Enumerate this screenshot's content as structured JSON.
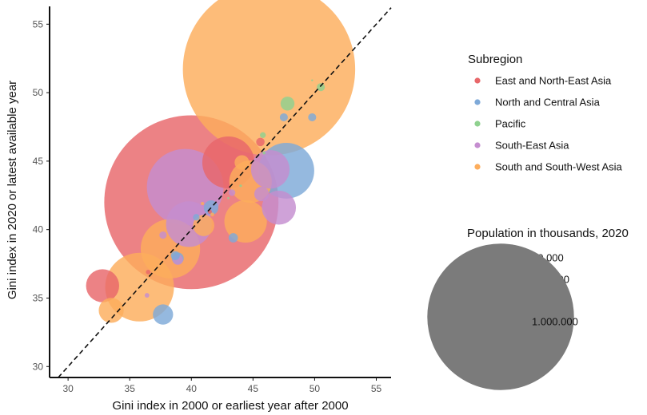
{
  "chart_data": {
    "type": "scatter",
    "xlabel": "Gini index in 2000 or earliest year after 2000",
    "ylabel": "Gini index in 2020 or latest available year",
    "xlim": [
      28.5,
      56.2
    ],
    "ylim": [
      29.2,
      56.3
    ],
    "xticks": [
      "30",
      "35",
      "40",
      "45",
      "50",
      "55"
    ],
    "yticks": [
      "30",
      "35",
      "40",
      "45",
      "50",
      "55"
    ],
    "reference_line": "y = x (dashed)",
    "grid": false,
    "colors": {
      "East and North-East Asia": "#e8676a",
      "North and Central Asia": "#7ea9d8",
      "Pacific": "#8fd18f",
      "South-East Asia": "#c58ed0",
      "South and South-West Asia": "#fdad5c"
    },
    "size_legend": {
      "title": "Population in thousands, 2020",
      "items": [
        {
          "label": "10,000",
          "value": 10000
        },
        {
          "label": "100.000",
          "value": 100000
        },
        {
          "label": "1.000.000",
          "value": 1000000
        }
      ]
    },
    "color_legend": {
      "title": "Subregion",
      "items": [
        "East and North-East Asia",
        "North and Central Asia",
        "Pacific",
        "South-East Asia",
        "South and South-West Asia"
      ]
    },
    "series": [
      {
        "name": "East and North-East Asia",
        "points": [
          {
            "x": 40.0,
            "y": 42.0,
            "pop": 1410000
          },
          {
            "x": 43.0,
            "y": 44.9,
            "pop": 126000
          },
          {
            "x": 32.8,
            "y": 35.9,
            "pop": 51000
          },
          {
            "x": 45.6,
            "y": 46.4,
            "pop": 3300
          },
          {
            "x": 36.5,
            "y": 36.9,
            "pop": 1000
          },
          {
            "x": 41.5,
            "y": 41.3,
            "pop": 800
          }
        ]
      },
      {
        "name": "North and Central Asia",
        "points": [
          {
            "x": 47.7,
            "y": 44.3,
            "pop": 145000
          },
          {
            "x": 37.7,
            "y": 33.8,
            "pop": 19000
          },
          {
            "x": 38.9,
            "y": 37.9,
            "pop": 6500
          },
          {
            "x": 41.6,
            "y": 41.6,
            "pop": 10000
          },
          {
            "x": 43.4,
            "y": 39.4,
            "pop": 4000
          },
          {
            "x": 47.5,
            "y": 48.2,
            "pop": 3000
          },
          {
            "x": 49.8,
            "y": 48.2,
            "pop": 3000
          },
          {
            "x": 38.7,
            "y": 38.1,
            "pop": 3700
          },
          {
            "x": 40.4,
            "y": 40.9,
            "pop": 2000
          }
        ]
      },
      {
        "name": "Pacific",
        "points": [
          {
            "x": 47.8,
            "y": 49.2,
            "pop": 9000
          },
          {
            "x": 50.5,
            "y": 50.4,
            "pop": 3000
          },
          {
            "x": 45.8,
            "y": 46.9,
            "pop": 1600
          },
          {
            "x": 45.9,
            "y": 45.6,
            "pop": 400
          },
          {
            "x": 43.0,
            "y": 42.3,
            "pop": 200
          },
          {
            "x": 49.8,
            "y": 50.9,
            "pop": 100
          },
          {
            "x": 44.0,
            "y": 43.2,
            "pop": 300
          }
        ]
      },
      {
        "name": "South-East Asia",
        "points": [
          {
            "x": 39.5,
            "y": 43.1,
            "pop": 273000
          },
          {
            "x": 46.4,
            "y": 44.4,
            "pop": 69000
          },
          {
            "x": 47.1,
            "y": 41.6,
            "pop": 54000
          },
          {
            "x": 39.8,
            "y": 40.4,
            "pop": 97000
          },
          {
            "x": 45.7,
            "y": 42.6,
            "pop": 10000
          },
          {
            "x": 37.7,
            "y": 39.6,
            "pop": 2500
          },
          {
            "x": 38.9,
            "y": 37.8,
            "pop": 5000
          },
          {
            "x": 43.3,
            "y": 42.7,
            "pop": 2000
          },
          {
            "x": 36.4,
            "y": 35.2,
            "pop": 1000
          }
        ]
      },
      {
        "name": "South and South-West Asia",
        "points": [
          {
            "x": 46.3,
            "y": 51.7,
            "pop": 1380000
          },
          {
            "x": 35.8,
            "y": 35.8,
            "pop": 220000
          },
          {
            "x": 38.3,
            "y": 38.6,
            "pop": 164000
          },
          {
            "x": 44.4,
            "y": 40.6,
            "pop": 84000
          },
          {
            "x": 44.8,
            "y": 43.5,
            "pop": 84000
          },
          {
            "x": 33.5,
            "y": 34.1,
            "pop": 29000
          },
          {
            "x": 41.0,
            "y": 40.3,
            "pop": 21000
          },
          {
            "x": 44.1,
            "y": 44.9,
            "pop": 10000
          },
          {
            "x": 41.7,
            "y": 41.1,
            "pop": 700
          },
          {
            "x": 40.9,
            "y": 41.9,
            "pop": 500
          }
        ]
      }
    ]
  }
}
